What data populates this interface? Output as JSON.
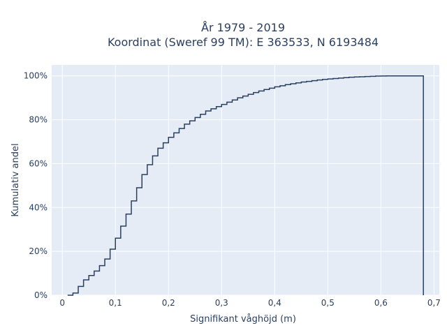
{
  "chart_data": {
    "type": "line",
    "line_shape": "step",
    "title_lines": [
      "År 1979 - 2019",
      "Koordinat (Sweref 99 TM): E 363533, N 6193484"
    ],
    "xlabel": "Signifikant våghöjd (m)",
    "ylabel": "Kumulativ andel",
    "xlim": [
      -0.02,
      0.71
    ],
    "ylim": [
      0,
      1.05
    ],
    "x_ticks": [
      0,
      0.1,
      0.2,
      0.3,
      0.4,
      0.5,
      0.6,
      0.7
    ],
    "x_tick_labels": [
      "0",
      "0,1",
      "0,2",
      "0,3",
      "0,4",
      "0,5",
      "0,6",
      "0,7"
    ],
    "y_ticks": [
      0,
      0.2,
      0.4,
      0.6,
      0.8,
      1.0
    ],
    "y_tick_labels": [
      "0%",
      "20%",
      "40%",
      "60%",
      "80%",
      "100%"
    ],
    "grid": true,
    "colors": {
      "line": "#2a3f5f",
      "plot_bg": "#e5ecf6",
      "grid": "#ffffff"
    },
    "series": [
      {
        "x": [
          0.01,
          0.02,
          0.03,
          0.04,
          0.05,
          0.06,
          0.07,
          0.08,
          0.09,
          0.1,
          0.11,
          0.12,
          0.13,
          0.14,
          0.15,
          0.16,
          0.17,
          0.18,
          0.19,
          0.2,
          0.21,
          0.22,
          0.23,
          0.24,
          0.25,
          0.26,
          0.27,
          0.28,
          0.29,
          0.3,
          0.31,
          0.32,
          0.33,
          0.34,
          0.35,
          0.36,
          0.37,
          0.38,
          0.39,
          0.4,
          0.41,
          0.42,
          0.43,
          0.44,
          0.45,
          0.46,
          0.47,
          0.48,
          0.49,
          0.5,
          0.51,
          0.52,
          0.53,
          0.54,
          0.55,
          0.56,
          0.57,
          0.58,
          0.59,
          0.6,
          0.61,
          0.62,
          0.63,
          0.64,
          0.65,
          0.66,
          0.67,
          0.68
        ],
        "y": [
          0.0,
          0.01,
          0.04,
          0.07,
          0.09,
          0.11,
          0.135,
          0.165,
          0.21,
          0.26,
          0.315,
          0.37,
          0.43,
          0.49,
          0.55,
          0.595,
          0.635,
          0.67,
          0.695,
          0.72,
          0.74,
          0.76,
          0.78,
          0.795,
          0.81,
          0.825,
          0.84,
          0.85,
          0.86,
          0.87,
          0.88,
          0.89,
          0.9,
          0.908,
          0.916,
          0.924,
          0.931,
          0.938,
          0.944,
          0.95,
          0.955,
          0.96,
          0.964,
          0.968,
          0.972,
          0.975,
          0.978,
          0.981,
          0.984,
          0.986,
          0.988,
          0.99,
          0.992,
          0.994,
          0.995,
          0.996,
          0.997,
          0.998,
          0.999,
          0.9995,
          1.0,
          1.0,
          1.0,
          1.0,
          1.0,
          1.0,
          1.0,
          1.0
        ],
        "drop_to_zero_at": 0.68
      }
    ]
  }
}
